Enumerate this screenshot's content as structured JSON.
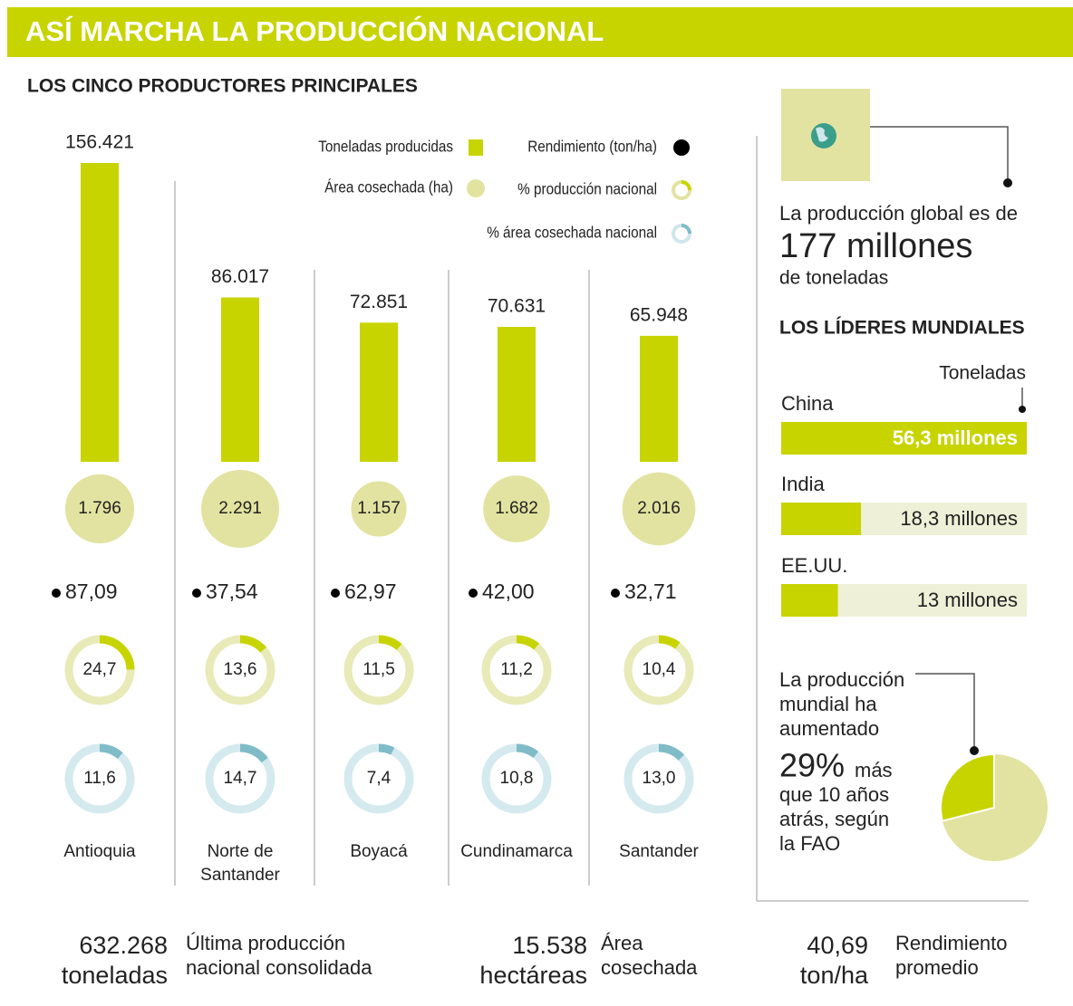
{
  "header": {
    "title": "ASÍ MARCHA LA PRODUCCIÓN NACIONAL"
  },
  "chart_data": [
    {
      "type": "producers",
      "title": "LOS CINCO PRODUCTORES PRINCIPALES",
      "categories": [
        "Antioquia",
        "Norte de Santander",
        "Boyacá",
        "Cundinamarca",
        "Santander"
      ],
      "series": [
        {
          "name": "Toneladas producidas",
          "color": "#c8d400",
          "values": [
            156421,
            86017,
            72851,
            70631,
            65948
          ],
          "value_labels": [
            "156.421",
            "86.017",
            "72.851",
            "70.631",
            "65.948"
          ]
        },
        {
          "name": "Área cosechada (ha)",
          "color": "#e2e3a0",
          "values": [
            1796,
            2291,
            1157,
            1682,
            2016
          ],
          "value_labels": [
            "1.796",
            "2.291",
            "1.157",
            "1.682",
            "2.016"
          ]
        },
        {
          "name": "Rendimiento (ton/ha)",
          "color": "#000000",
          "values": [
            87.09,
            37.54,
            62.97,
            42.0,
            32.71
          ],
          "value_labels": [
            "87,09",
            "37,54",
            "62,97",
            "42,00",
            "32,71"
          ]
        },
        {
          "name": "% producción nacional",
          "color": "#c8d400",
          "values": [
            24.7,
            13.6,
            11.5,
            11.2,
            10.4
          ],
          "value_labels": [
            "24,7",
            "13,6",
            "11,5",
            "11,2",
            "10,4"
          ]
        },
        {
          "name": "% área cosechada nacional",
          "color": "#7fbcc8",
          "values": [
            11.6,
            14.7,
            7.4,
            10.8,
            13.0
          ],
          "value_labels": [
            "11,6",
            "14,7",
            "7,4",
            "10,8",
            "13,0"
          ]
        }
      ]
    },
    {
      "type": "hbar",
      "title": "LOS LÍDERES MUNDIALES",
      "xlabel": "Toneladas",
      "categories": [
        "China",
        "India",
        "EE.UU."
      ],
      "values": [
        56.3,
        18.3,
        13
      ],
      "value_labels": [
        "56,3 millones",
        "18,3 millones",
        "13 millones"
      ],
      "xlim": [
        0,
        56.3
      ],
      "color": "#c8d400"
    },
    {
      "type": "pie",
      "text_before": [
        "La producción",
        "mundial ha",
        "aumentado"
      ],
      "value": 29,
      "value_label": "29%",
      "text_after": [
        "más",
        "que 10 años",
        "atrás, según",
        "la FAO"
      ],
      "color": "#c8d400"
    }
  ],
  "global": {
    "lead": "La producción global es de",
    "amount": "177 millones",
    "unit": "de toneladas"
  },
  "footer": [
    {
      "value": "632.268",
      "unit": "toneladas",
      "lines": [
        "Última producción",
        "nacional consolidada"
      ]
    },
    {
      "value": "15.538",
      "unit": "hectáreas",
      "lines": [
        "Área",
        "cosechada"
      ]
    },
    {
      "value": "40,69",
      "unit": "ton/ha",
      "lines": [
        "Rendimiento",
        "promedio"
      ]
    }
  ]
}
